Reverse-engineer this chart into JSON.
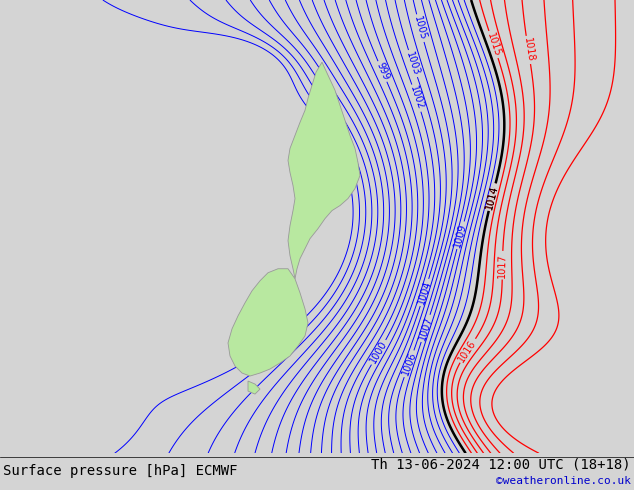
{
  "title_left": "Surface pressure [hPa] ECMWF",
  "title_right": "Th 13-06-2024 12:00 UTC (18+18)",
  "copyright": "©weatheronline.co.uk",
  "bg_color": "#d4d4d4",
  "land_color": "#b8e8a0",
  "land_edge_color": "#999999",
  "font_size_title": 10,
  "font_size_labels": 7,
  "font_size_copyright": 8,
  "blue_color": "#0000ff",
  "red_color": "#ff0000",
  "black_color": "#000000"
}
